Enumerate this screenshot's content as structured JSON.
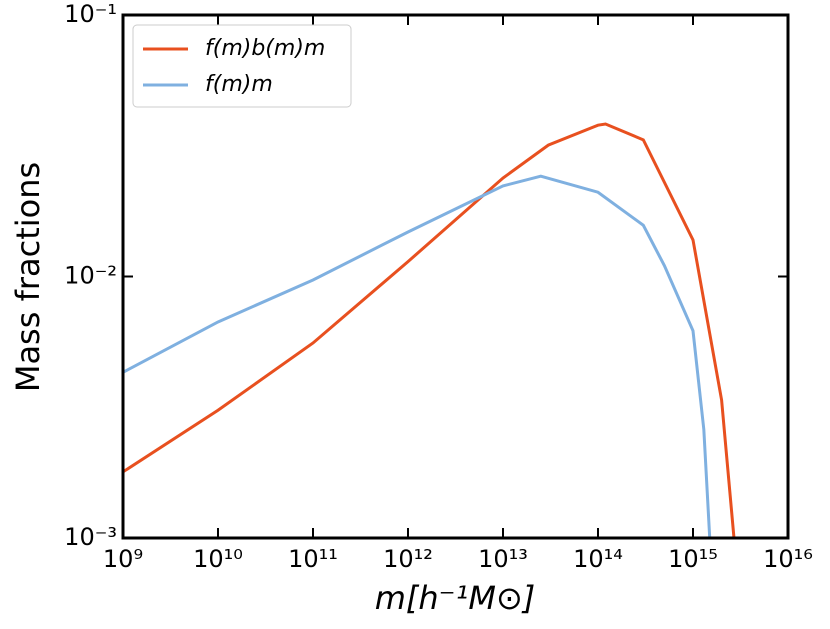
{
  "chart_data": {
    "type": "line",
    "xlabel": "m[h⁻¹M⊙]",
    "ylabel": "Mass fractions",
    "xscale": "log",
    "yscale": "log",
    "xlim": [
      1000000000.0,
      1e+16
    ],
    "ylim": [
      0.001,
      0.1
    ],
    "xticks": [
      {
        "value": 1000000000.0,
        "label": "10⁹"
      },
      {
        "value": 10000000000.0,
        "label": "10¹⁰"
      },
      {
        "value": 100000000000.0,
        "label": "10¹¹"
      },
      {
        "value": 1000000000000.0,
        "label": "10¹²"
      },
      {
        "value": 10000000000000.0,
        "label": "10¹³"
      },
      {
        "value": 100000000000000.0,
        "label": "10¹⁴"
      },
      {
        "value": 1000000000000000.0,
        "label": "10¹⁵"
      },
      {
        "value": 1e+16,
        "label": "10¹⁶"
      }
    ],
    "yticks": [
      {
        "value": 0.001,
        "label": "10⁻³"
      },
      {
        "value": 0.01,
        "label": "10⁻²"
      },
      {
        "value": 0.1,
        "label": "10⁻¹"
      }
    ],
    "legend": "upper left",
    "series": [
      {
        "name": "f(m)b(m)m",
        "color": "#e8501f",
        "x": [
          1000000000.0,
          10000000000.0,
          100000000000.0,
          1000000000000.0,
          10000000000000.0,
          30000000000000.0,
          100000000000000.0,
          120000000000000.0,
          300000000000000.0,
          1000000000000000.0,
          2000000000000000.0,
          2700000000000000.0
        ],
        "values": [
          0.00179,
          0.00308,
          0.00557,
          0.0114,
          0.0238,
          0.0318,
          0.0379,
          0.0383,
          0.0333,
          0.0138,
          0.00337,
          0.001
        ]
      },
      {
        "name": "f(m)m",
        "color": "#7fb0e0",
        "x": [
          1000000000.0,
          10000000000.0,
          100000000000.0,
          1000000000000.0,
          10000000000000.0,
          25000000000000.0,
          100000000000000.0,
          300000000000000.0,
          500000000000000.0,
          1000000000000000.0,
          1300000000000000.0,
          1500000000000000.0
        ],
        "values": [
          0.0043,
          0.0067,
          0.0097,
          0.0148,
          0.0222,
          0.0242,
          0.021,
          0.0157,
          0.011,
          0.0062,
          0.0026,
          0.001
        ]
      }
    ]
  }
}
